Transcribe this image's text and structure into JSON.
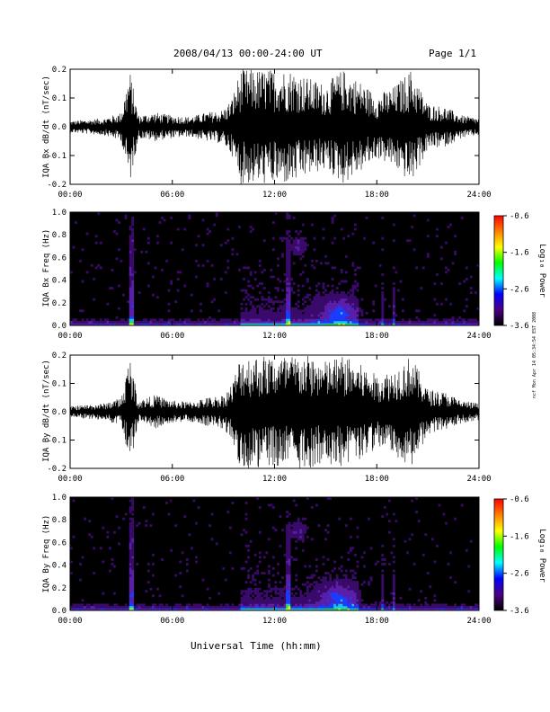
{
  "header": {
    "title": "2008/04/13  00:00-24:00 UT",
    "page": "Page 1/1"
  },
  "footer": {
    "xlabel": "Universal Time (hh:mm)",
    "side_note": "ncf Mon Apr 14 05:34:54 EST 2008"
  },
  "colorbar": {
    "label": "Log₁₀ Power",
    "ticks": [
      "-0.6",
      "-1.6",
      "-2.6",
      "-3.6"
    ],
    "range": [
      -3.6,
      -0.6
    ],
    "colors": [
      "#000000",
      "#4b0082",
      "#0000ff",
      "#00ffff",
      "#00ff00",
      "#ffff00",
      "#ff7f00",
      "#ff0000"
    ]
  },
  "chart_data": [
    {
      "type": "line",
      "ylabel": "IQA Bx dB/dt (nT/sec)",
      "x_ticks": [
        "00:00",
        "06:00",
        "12:00",
        "18:00",
        "24:00"
      ],
      "y_ticks": [
        "-0.2",
        "-0.1",
        "0.0",
        "0.1",
        "0.2"
      ],
      "xlim": [
        0,
        24
      ],
      "ylim": [
        -0.2,
        0.2
      ],
      "envelope_hours": [
        0,
        1,
        2,
        3,
        3.5,
        4,
        5,
        6,
        7,
        8,
        9,
        9.5,
        10,
        11,
        12,
        13,
        14,
        15,
        16,
        17,
        18,
        19,
        20,
        21,
        22,
        23,
        24
      ],
      "envelope_amplitude": [
        0.02,
        0.025,
        0.03,
        0.05,
        0.2,
        0.04,
        0.05,
        0.04,
        0.035,
        0.05,
        0.06,
        0.1,
        0.2,
        0.2,
        0.2,
        0.2,
        0.17,
        0.15,
        0.2,
        0.16,
        0.11,
        0.14,
        0.2,
        0.08,
        0.07,
        0.04,
        0.03
      ]
    },
    {
      "type": "heatmap",
      "ylabel": "IQA Bx Freq (Hz)",
      "x_ticks": [
        "00:00",
        "06:00",
        "12:00",
        "18:00",
        "24:00"
      ],
      "y_ticks": [
        "0.0",
        "0.2",
        "0.4",
        "0.6",
        "0.8",
        "1.0"
      ],
      "xlim": [
        0,
        24
      ],
      "ylim": [
        0,
        1.0
      ],
      "zlim": [
        -3.6,
        -0.6
      ]
    },
    {
      "type": "line",
      "ylabel": "IQA By dB/dt (nT/sec)",
      "x_ticks": [
        "00:00",
        "06:00",
        "12:00",
        "18:00",
        "24:00"
      ],
      "y_ticks": [
        "-0.2",
        "-0.1",
        "0.0",
        "0.1",
        "0.2"
      ],
      "xlim": [
        0,
        24
      ],
      "ylim": [
        -0.2,
        0.2
      ],
      "envelope_hours": [
        0,
        1,
        2,
        3,
        3.5,
        4,
        5,
        6,
        7,
        8,
        9,
        9.5,
        10,
        11,
        12,
        13,
        14,
        15,
        16,
        17,
        18,
        19,
        20,
        21,
        22,
        23,
        24
      ],
      "envelope_amplitude": [
        0.02,
        0.025,
        0.03,
        0.05,
        0.2,
        0.04,
        0.06,
        0.04,
        0.035,
        0.05,
        0.06,
        0.1,
        0.2,
        0.2,
        0.2,
        0.2,
        0.2,
        0.18,
        0.2,
        0.17,
        0.13,
        0.15,
        0.2,
        0.08,
        0.07,
        0.04,
        0.03
      ]
    },
    {
      "type": "heatmap",
      "ylabel": "IQA By Freq (Hz)",
      "x_ticks": [
        "00:00",
        "06:00",
        "12:00",
        "18:00",
        "24:00"
      ],
      "y_ticks": [
        "0.0",
        "0.2",
        "0.4",
        "0.6",
        "0.8",
        "1.0"
      ],
      "xlim": [
        0,
        24
      ],
      "ylim": [
        0,
        1.0
      ],
      "zlim": [
        -3.6,
        -0.6
      ]
    }
  ]
}
